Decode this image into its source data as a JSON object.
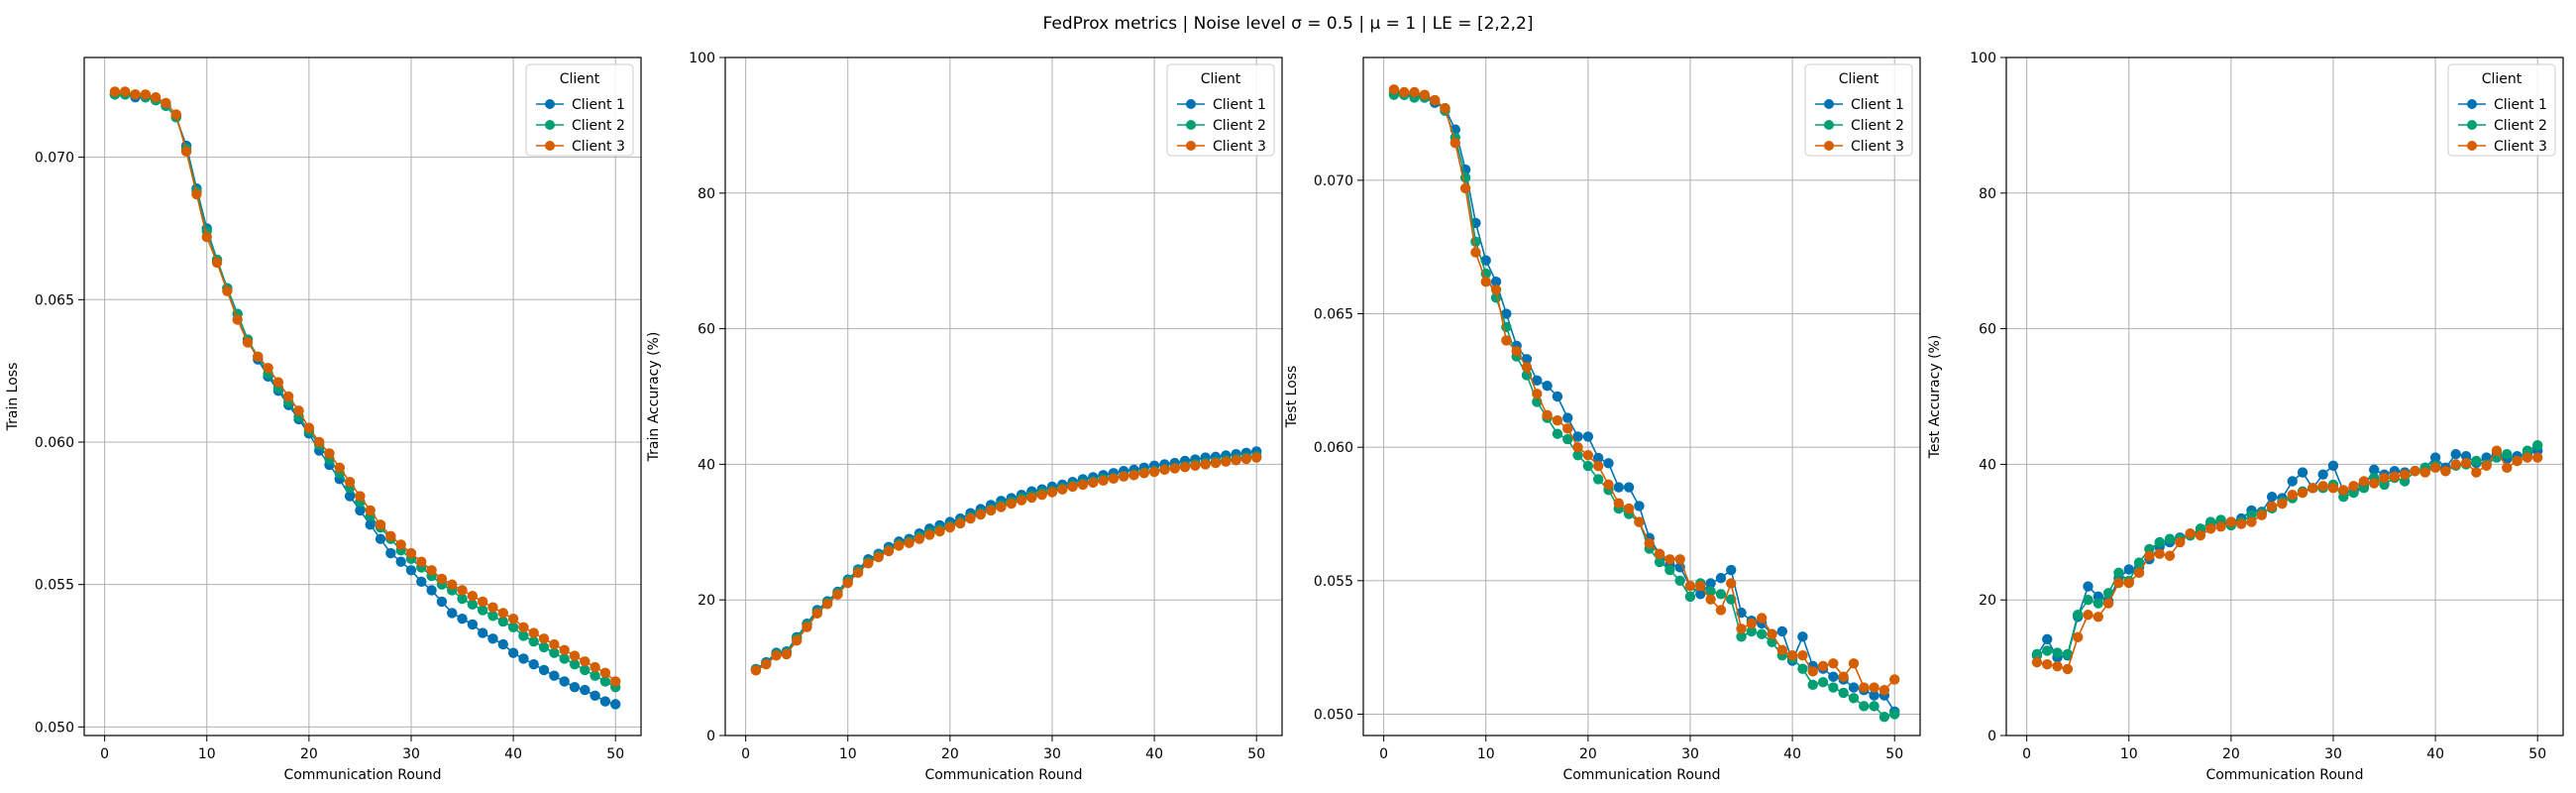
{
  "figure": {
    "title": "FedProx metrics | Noise level σ = 0.5 | μ = 1 | LE = [2,2,2]"
  },
  "colors": {
    "Client 1": "#0072B2",
    "Client 2": "#009E73",
    "Client 3": "#D55E00",
    "grid": "#b0b0b0",
    "axes": "#000000"
  },
  "chart_data": [
    {
      "type": "line",
      "xlabel": "Communication Round",
      "ylabel": "Train Loss",
      "xlim": [
        -2,
        52.5
      ],
      "ylim": [
        0.0497,
        0.0735
      ],
      "xticks": [
        0,
        10,
        20,
        30,
        40,
        50
      ],
      "yticks": [
        0.05,
        0.055,
        0.06,
        0.065,
        0.07
      ],
      "ytick_labels": [
        "0.050",
        "0.055",
        "0.060",
        "0.065",
        "0.070"
      ],
      "grid": true,
      "legend": {
        "title": "Client",
        "position": "top-right"
      },
      "x": [
        1,
        2,
        3,
        4,
        5,
        6,
        7,
        8,
        9,
        10,
        11,
        12,
        13,
        14,
        15,
        16,
        17,
        18,
        19,
        20,
        21,
        22,
        23,
        24,
        25,
        26,
        27,
        28,
        29,
        30,
        31,
        32,
        33,
        34,
        35,
        36,
        37,
        38,
        39,
        40,
        41,
        42,
        43,
        44,
        45,
        46,
        47,
        48,
        49,
        50
      ],
      "series": [
        {
          "name": "Client 1",
          "values": [
            0.0722,
            0.0722,
            0.0721,
            0.0721,
            0.072,
            0.0718,
            0.0714,
            0.0704,
            0.0689,
            0.0675,
            0.0664,
            0.0654,
            0.0645,
            0.0636,
            0.0629,
            0.0623,
            0.0618,
            0.0613,
            0.0608,
            0.0603,
            0.0597,
            0.0592,
            0.0587,
            0.0581,
            0.0576,
            0.0571,
            0.0566,
            0.0561,
            0.0558,
            0.0555,
            0.0551,
            0.0548,
            0.0544,
            0.054,
            0.0538,
            0.0536,
            0.0533,
            0.0531,
            0.0529,
            0.0526,
            0.0524,
            0.0522,
            0.052,
            0.0518,
            0.0516,
            0.0514,
            0.0513,
            0.0511,
            0.0509,
            0.0508
          ]
        },
        {
          "name": "Client 2",
          "values": [
            0.0722,
            0.0722,
            0.0722,
            0.0721,
            0.072,
            0.0718,
            0.0714,
            0.0703,
            0.0688,
            0.0674,
            0.0664,
            0.0654,
            0.0645,
            0.0636,
            0.063,
            0.0624,
            0.0619,
            0.0614,
            0.0609,
            0.0604,
            0.0599,
            0.0594,
            0.0589,
            0.0584,
            0.0579,
            0.0574,
            0.057,
            0.0566,
            0.0562,
            0.0559,
            0.0556,
            0.0553,
            0.055,
            0.0548,
            0.0545,
            0.0543,
            0.0541,
            0.0539,
            0.0537,
            0.0535,
            0.0532,
            0.053,
            0.0528,
            0.0526,
            0.0524,
            0.0522,
            0.052,
            0.0518,
            0.0516,
            0.0514
          ]
        },
        {
          "name": "Client 3",
          "values": [
            0.0723,
            0.0723,
            0.0722,
            0.0722,
            0.0721,
            0.0719,
            0.0715,
            0.0702,
            0.0687,
            0.0672,
            0.0663,
            0.0653,
            0.0643,
            0.0635,
            0.063,
            0.0626,
            0.0621,
            0.0616,
            0.0611,
            0.0605,
            0.06,
            0.0596,
            0.0591,
            0.0586,
            0.0581,
            0.0576,
            0.0571,
            0.0567,
            0.0564,
            0.0561,
            0.0558,
            0.0555,
            0.0552,
            0.055,
            0.0548,
            0.0546,
            0.0544,
            0.0542,
            0.054,
            0.0538,
            0.0535,
            0.0533,
            0.0531,
            0.0529,
            0.0527,
            0.0525,
            0.0523,
            0.0521,
            0.0519,
            0.0516
          ]
        }
      ]
    },
    {
      "type": "line",
      "xlabel": "Communication Round",
      "ylabel": "Train Accuracy (%)",
      "xlim": [
        -2,
        52.5
      ],
      "ylim": [
        0,
        100
      ],
      "xticks": [
        0,
        10,
        20,
        30,
        40,
        50
      ],
      "yticks": [
        0,
        20,
        40,
        60,
        80,
        100
      ],
      "ytick_labels": [
        "0",
        "20",
        "40",
        "60",
        "80",
        "100"
      ],
      "grid": true,
      "legend": {
        "title": "Client",
        "position": "top-right"
      },
      "x": [
        1,
        2,
        3,
        4,
        5,
        6,
        7,
        8,
        9,
        10,
        11,
        12,
        13,
        14,
        15,
        16,
        17,
        18,
        19,
        20,
        21,
        22,
        23,
        24,
        25,
        26,
        27,
        28,
        29,
        30,
        31,
        32,
        33,
        34,
        35,
        36,
        37,
        38,
        39,
        40,
        41,
        42,
        43,
        44,
        45,
        46,
        47,
        48,
        49,
        50
      ],
      "series": [
        {
          "name": "Client 1",
          "values": [
            9.8,
            10.8,
            12.2,
            12.4,
            14.5,
            16.5,
            18.5,
            19.8,
            21.2,
            23.0,
            24.5,
            26.0,
            26.8,
            27.8,
            28.6,
            29.0,
            29.8,
            30.5,
            31.0,
            31.5,
            32.0,
            32.8,
            33.4,
            34.0,
            34.6,
            35.0,
            35.5,
            36.0,
            36.3,
            36.7,
            37.0,
            37.4,
            37.8,
            38.1,
            38.4,
            38.7,
            39.0,
            39.2,
            39.5,
            39.8,
            40.0,
            40.2,
            40.5,
            40.7,
            41.0,
            41.1,
            41.3,
            41.5,
            41.7,
            41.9
          ]
        },
        {
          "name": "Client 2",
          "values": [
            9.7,
            10.6,
            12.0,
            12.2,
            14.3,
            16.3,
            18.2,
            19.6,
            21.0,
            22.8,
            24.3,
            25.6,
            26.5,
            27.4,
            28.2,
            28.6,
            29.3,
            29.9,
            30.4,
            30.9,
            31.5,
            32.2,
            32.8,
            33.4,
            34.0,
            34.5,
            35.0,
            35.4,
            35.8,
            36.1,
            36.5,
            36.9,
            37.2,
            37.5,
            37.8,
            38.0,
            38.3,
            38.5,
            38.8,
            39.0,
            39.3,
            39.5,
            39.7,
            40.0,
            40.2,
            40.4,
            40.6,
            40.8,
            41.0,
            41.2
          ]
        },
        {
          "name": "Client 3",
          "values": [
            9.6,
            10.5,
            11.8,
            12.0,
            14.0,
            16.0,
            18.0,
            19.4,
            20.8,
            22.5,
            24.0,
            25.4,
            26.3,
            27.2,
            28.0,
            28.4,
            29.0,
            29.6,
            30.1,
            30.7,
            31.3,
            32.0,
            32.6,
            33.2,
            33.7,
            34.2,
            34.7,
            35.1,
            35.5,
            35.9,
            36.3,
            36.7,
            37.0,
            37.3,
            37.6,
            37.9,
            38.2,
            38.4,
            38.7,
            38.9,
            39.2,
            39.4,
            39.6,
            39.8,
            40.0,
            40.2,
            40.4,
            40.6,
            40.8,
            41.0
          ]
        }
      ]
    },
    {
      "type": "line",
      "xlabel": "Communication Round",
      "ylabel": "Test Loss",
      "xlim": [
        -2,
        52.5
      ],
      "ylim": [
        0.0492,
        0.0746
      ],
      "xticks": [
        0,
        10,
        20,
        30,
        40,
        50
      ],
      "yticks": [
        0.05,
        0.055,
        0.06,
        0.065,
        0.07
      ],
      "ytick_labels": [
        "0.050",
        "0.055",
        "0.060",
        "0.065",
        "0.070"
      ],
      "grid": true,
      "legend": {
        "title": "Client",
        "position": "top-right"
      },
      "x": [
        1,
        2,
        3,
        4,
        5,
        6,
        7,
        8,
        9,
        10,
        11,
        12,
        13,
        14,
        15,
        16,
        17,
        18,
        19,
        20,
        21,
        22,
        23,
        24,
        25,
        26,
        27,
        28,
        29,
        30,
        31,
        32,
        33,
        34,
        35,
        36,
        37,
        38,
        39,
        40,
        41,
        42,
        43,
        44,
        45,
        46,
        47,
        48,
        49,
        50
      ],
      "series": [
        {
          "name": "Client 1",
          "values": [
            0.0733,
            0.0732,
            0.0732,
            0.0731,
            0.0729,
            0.0727,
            0.0719,
            0.0704,
            0.0684,
            0.067,
            0.0662,
            0.065,
            0.0638,
            0.0633,
            0.0625,
            0.0623,
            0.0619,
            0.0611,
            0.0604,
            0.0604,
            0.0596,
            0.0594,
            0.0585,
            0.0585,
            0.0578,
            0.0566,
            0.056,
            0.0556,
            0.0555,
            0.0548,
            0.0545,
            0.0549,
            0.0551,
            0.0554,
            0.0538,
            0.0535,
            0.0534,
            0.053,
            0.0531,
            0.052,
            0.0529,
            0.0518,
            0.0517,
            0.0514,
            0.0513,
            0.051,
            0.0509,
            0.0507,
            0.0507,
            0.0501
          ]
        },
        {
          "name": "Client 2",
          "values": [
            0.0732,
            0.0732,
            0.0731,
            0.0731,
            0.073,
            0.0726,
            0.0716,
            0.0701,
            0.0677,
            0.0665,
            0.0656,
            0.0645,
            0.0634,
            0.0627,
            0.0617,
            0.0611,
            0.0605,
            0.0603,
            0.0597,
            0.0593,
            0.0588,
            0.0584,
            0.0577,
            0.0575,
            0.0572,
            0.0562,
            0.0557,
            0.0554,
            0.055,
            0.0544,
            0.0549,
            0.0546,
            0.0545,
            0.0543,
            0.0529,
            0.0531,
            0.053,
            0.0527,
            0.0522,
            0.0521,
            0.0517,
            0.0511,
            0.0512,
            0.051,
            0.0508,
            0.0506,
            0.0503,
            0.0503,
            0.0499,
            0.05
          ]
        },
        {
          "name": "Client 3",
          "values": [
            0.0734,
            0.0733,
            0.0733,
            0.0732,
            0.073,
            0.0727,
            0.0714,
            0.0697,
            0.0673,
            0.0662,
            0.0659,
            0.064,
            0.0636,
            0.063,
            0.062,
            0.0612,
            0.061,
            0.0607,
            0.06,
            0.0597,
            0.0593,
            0.0586,
            0.0579,
            0.0577,
            0.0572,
            0.0564,
            0.056,
            0.0558,
            0.0558,
            0.0548,
            0.0548,
            0.0543,
            0.0539,
            0.0549,
            0.0532,
            0.0534,
            0.0536,
            0.053,
            0.0524,
            0.0522,
            0.0522,
            0.0516,
            0.0518,
            0.0519,
            0.0514,
            0.0519,
            0.051,
            0.051,
            0.0509,
            0.0513
          ]
        }
      ]
    },
    {
      "type": "line",
      "xlabel": "Communication Round",
      "ylabel": "Test Accuracy (%)",
      "xlim": [
        -2,
        52.5
      ],
      "ylim": [
        0,
        100
      ],
      "xticks": [
        0,
        10,
        20,
        30,
        40,
        50
      ],
      "yticks": [
        0,
        20,
        40,
        60,
        80,
        100
      ],
      "ytick_labels": [
        "0",
        "20",
        "40",
        "60",
        "80",
        "100"
      ],
      "grid": true,
      "legend": {
        "title": "Client",
        "position": "top-right"
      },
      "x": [
        1,
        2,
        3,
        4,
        5,
        6,
        7,
        8,
        9,
        10,
        11,
        12,
        13,
        14,
        15,
        16,
        17,
        18,
        19,
        20,
        21,
        22,
        23,
        24,
        25,
        26,
        27,
        28,
        29,
        30,
        31,
        32,
        33,
        34,
        35,
        36,
        37,
        38,
        39,
        40,
        41,
        42,
        43,
        44,
        45,
        46,
        47,
        48,
        49,
        50
      ],
      "series": [
        {
          "name": "Client 1",
          "values": [
            11.8,
            14.2,
            11.5,
            11.8,
            17.5,
            22.0,
            20.5,
            19.8,
            23.2,
            24.5,
            24.8,
            26.0,
            27.8,
            28.5,
            29.2,
            29.5,
            30.0,
            31.2,
            31.5,
            31.5,
            32.0,
            33.2,
            33.0,
            35.2,
            35.0,
            37.5,
            38.8,
            36.5,
            38.5,
            39.8,
            36.0,
            36.0,
            36.8,
            39.2,
            38.5,
            39.0,
            38.8,
            39.0,
            39.5,
            41.0,
            39.5,
            41.5,
            41.2,
            40.2,
            41.0,
            41.5,
            40.8,
            41.2,
            41.5,
            42.0
          ]
        },
        {
          "name": "Client 2",
          "values": [
            12.0,
            12.5,
            12.2,
            12.0,
            17.8,
            20.0,
            19.5,
            21.0,
            24.0,
            22.8,
            25.5,
            27.5,
            28.5,
            29.0,
            29.0,
            29.5,
            30.5,
            31.5,
            31.8,
            31.0,
            31.5,
            32.5,
            32.8,
            33.5,
            34.5,
            35.0,
            36.0,
            36.5,
            36.5,
            37.0,
            35.2,
            35.8,
            36.5,
            38.0,
            37.0,
            38.0,
            37.5,
            39.0,
            39.5,
            39.8,
            39.0,
            39.8,
            40.0,
            40.5,
            40.0,
            41.0,
            41.5,
            40.5,
            42.0,
            42.8
          ]
        },
        {
          "name": "Client 3",
          "values": [
            10.8,
            10.5,
            10.2,
            9.8,
            14.5,
            17.8,
            17.5,
            19.5,
            22.5,
            22.5,
            24.0,
            26.5,
            26.8,
            26.5,
            28.5,
            29.8,
            29.5,
            30.5,
            30.8,
            31.5,
            31.2,
            31.5,
            32.5,
            33.8,
            34.2,
            35.5,
            35.8,
            36.5,
            36.8,
            36.5,
            36.2,
            36.8,
            37.5,
            37.2,
            38.0,
            38.2,
            38.5,
            39.0,
            38.8,
            39.5,
            39.0,
            40.0,
            40.2,
            38.8,
            39.8,
            42.0,
            39.5,
            40.5,
            41.0,
            41.0
          ]
        }
      ]
    }
  ]
}
